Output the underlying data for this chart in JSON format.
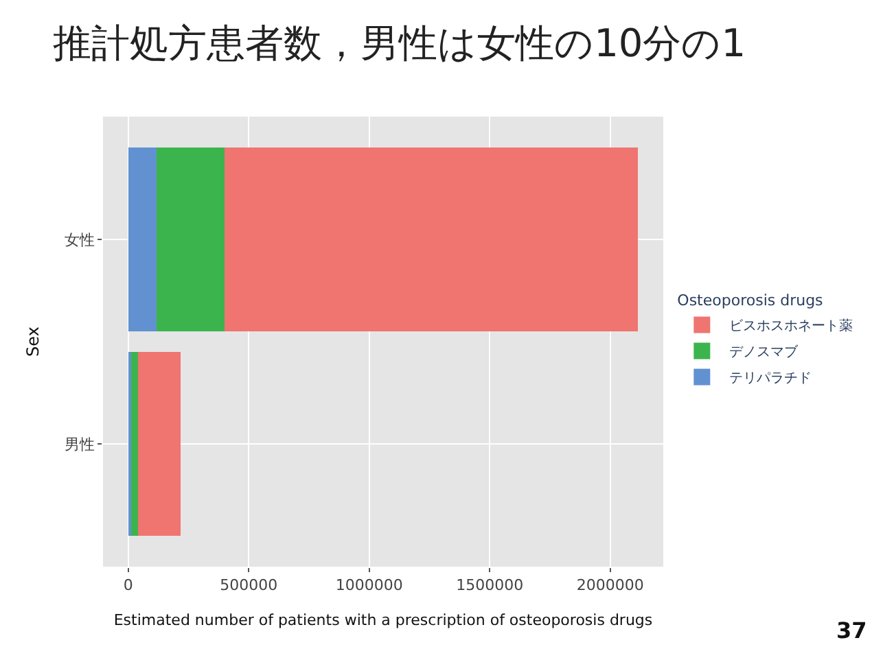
{
  "chart_data": {
    "type": "bar",
    "orientation": "horizontal",
    "stacked": true,
    "title": "推計処方患者数，男性は女性の10分の1",
    "xlabel": "Estimated number of patients with a prescription of osteoporosis drugs",
    "ylabel": "Sex",
    "legend_title": "Osteoporosis drugs",
    "categories": [
      "女性",
      "男性"
    ],
    "series": [
      {
        "name": "テリパラチド",
        "color": "#6191d0",
        "values": [
          117000,
          13000
        ]
      },
      {
        "name": "デノスマブ",
        "color": "#3cb44e",
        "values": [
          282000,
          27000
        ]
      },
      {
        "name": "ビスホスホネート薬",
        "color": "#f07470",
        "values": [
          1716000,
          176000
        ]
      }
    ],
    "xlim": [
      -105000,
      2220000
    ],
    "xticks": [
      0,
      500000,
      1000000,
      1500000,
      2000000
    ],
    "grid": true,
    "legend": "right",
    "annotations": [
      "37"
    ]
  }
}
